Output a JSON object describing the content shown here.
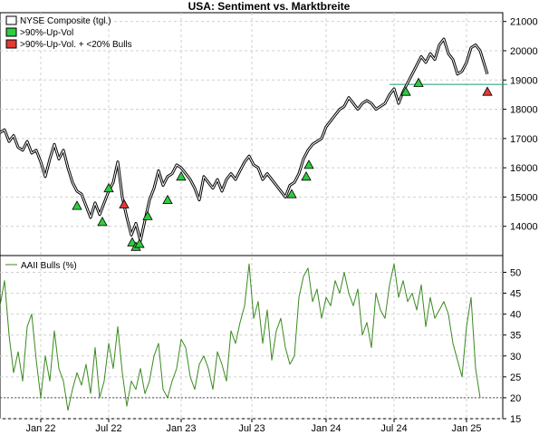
{
  "title": "USA: Sentiment vs. Marktbreite",
  "chart_data": [
    {
      "type": "line",
      "panel": "top",
      "ylim": [
        13000,
        21300
      ],
      "yticks": [
        14000,
        15000,
        16000,
        17000,
        18000,
        19000,
        20000,
        21000
      ],
      "ytick_labels": [
        "14000",
        "15000",
        "16000",
        "17000",
        "18000",
        "19000",
        "20000",
        "21000"
      ],
      "legend": {
        "position": "top-left",
        "entries": [
          {
            "label": "NYSE Composite (tgl.)",
            "color": "#ffffff"
          },
          {
            "label": ">90%-Up-Vol",
            "color": "#2ecc40"
          },
          {
            "label": ">90%-Up-Vol. + <20% Bulls",
            "color": "#e53935"
          }
        ]
      },
      "series": [
        {
          "name": "NYSE Composite (tgl.)",
          "points": [
            [
              0,
              17200
            ],
            [
              5,
              17300
            ],
            [
              10,
              16900
            ],
            [
              15,
              17100
            ],
            [
              20,
              16700
            ],
            [
              25,
              16600
            ],
            [
              30,
              16900
            ],
            [
              35,
              16500
            ],
            [
              40,
              16600
            ],
            [
              45,
              16200
            ],
            [
              50,
              15700
            ],
            [
              55,
              16300
            ],
            [
              60,
              16800
            ],
            [
              65,
              16300
            ],
            [
              70,
              16600
            ],
            [
              75,
              16000
            ],
            [
              80,
              15500
            ],
            [
              85,
              15200
            ],
            [
              90,
              15100
            ],
            [
              95,
              14700
            ],
            [
              100,
              14300
            ],
            [
              105,
              14800
            ],
            [
              110,
              14400
            ],
            [
              115,
              14800
            ],
            [
              120,
              15200
            ],
            [
              125,
              15500
            ],
            [
              130,
              16200
            ],
            [
              135,
              15000
            ],
            [
              140,
              14300
            ],
            [
              145,
              13700
            ],
            [
              150,
              14100
            ],
            [
              155,
              13500
            ],
            [
              160,
              14200
            ],
            [
              165,
              14900
            ],
            [
              170,
              15300
            ],
            [
              175,
              15900
            ],
            [
              180,
              15400
            ],
            [
              185,
              15700
            ],
            [
              190,
              15800
            ],
            [
              195,
              16100
            ],
            [
              200,
              16000
            ],
            [
              205,
              15800
            ],
            [
              210,
              15600
            ],
            [
              215,
              15300
            ],
            [
              220,
              14900
            ],
            [
              225,
              15700
            ],
            [
              230,
              15500
            ],
            [
              235,
              15300
            ],
            [
              240,
              15600
            ],
            [
              245,
              15200
            ],
            [
              250,
              15600
            ],
            [
              255,
              15800
            ],
            [
              260,
              15600
            ],
            [
              265,
              15900
            ],
            [
              270,
              16200
            ],
            [
              275,
              16400
            ],
            [
              280,
              16100
            ],
            [
              285,
              16000
            ],
            [
              290,
              15600
            ],
            [
              295,
              15800
            ],
            [
              300,
              15600
            ],
            [
              305,
              15400
            ],
            [
              310,
              15200
            ],
            [
              315,
              15000
            ],
            [
              320,
              15400
            ],
            [
              325,
              15500
            ],
            [
              330,
              15800
            ],
            [
              335,
              16300
            ],
            [
              340,
              16600
            ],
            [
              345,
              16800
            ],
            [
              350,
              16900
            ],
            [
              355,
              17000
            ],
            [
              360,
              17400
            ],
            [
              365,
              17600
            ],
            [
              370,
              17800
            ],
            [
              375,
              18000
            ],
            [
              380,
              18100
            ],
            [
              385,
              18400
            ],
            [
              390,
              18200
            ],
            [
              395,
              18000
            ],
            [
              400,
              18200
            ],
            [
              405,
              18300
            ],
            [
              410,
              18200
            ],
            [
              415,
              18000
            ],
            [
              420,
              18100
            ],
            [
              425,
              18200
            ],
            [
              430,
              18500
            ],
            [
              435,
              18700
            ],
            [
              440,
              18200
            ],
            [
              445,
              18600
            ],
            [
              450,
              18900
            ],
            [
              455,
              19200
            ],
            [
              460,
              19500
            ],
            [
              465,
              19800
            ],
            [
              470,
              19600
            ],
            [
              475,
              19900
            ],
            [
              480,
              19700
            ],
            [
              485,
              20200
            ],
            [
              490,
              20400
            ],
            [
              495,
              19900
            ],
            [
              500,
              19700
            ],
            [
              505,
              19200
            ],
            [
              510,
              19300
            ],
            [
              515,
              19600
            ],
            [
              520,
              20100
            ],
            [
              525,
              20200
            ],
            [
              530,
              20000
            ],
            [
              535,
              19500
            ],
            [
              538,
              19200
            ]
          ]
        }
      ],
      "markers": [
        {
          "label": ">90%-Up-Vol",
          "points": [
            [
              85,
              14700
            ],
            [
              113,
              14150
            ],
            [
              120,
              15300
            ],
            [
              146,
              13450
            ],
            [
              150,
              13300
            ],
            [
              154,
              13400
            ],
            [
              163,
              14350
            ],
            [
              185,
              14900
            ],
            [
              200,
              15700
            ],
            [
              322,
              15100
            ],
            [
              338,
              15700
            ],
            [
              341,
              16100
            ],
            [
              448,
              18600
            ],
            [
              462,
              18900
            ]
          ]
        },
        {
          "label": ">90%-Up-Vol. + <20% Bulls",
          "points": [
            [
              137,
              14750
            ],
            [
              538,
              18600
            ]
          ]
        }
      ],
      "reference_lines": [
        {
          "y": 18850,
          "x_from": 430,
          "x_to": 560
        }
      ]
    },
    {
      "type": "line",
      "panel": "bottom",
      "ylim": [
        15,
        54
      ],
      "yticks": [
        15,
        20,
        25,
        30,
        35,
        40,
        45,
        50
      ],
      "ytick_labels": [
        "15",
        "20",
        "25",
        "30",
        "35",
        "40",
        "45",
        "50"
      ],
      "legend": {
        "position": "top-left",
        "entries": [
          {
            "label": "AAII Bulls (%)",
            "color": "#3a8a1f"
          }
        ]
      },
      "x": [
        0,
        5,
        10,
        15,
        20,
        25,
        30,
        35,
        40,
        45,
        50,
        55,
        60,
        65,
        70,
        75,
        80,
        85,
        90,
        95,
        100,
        105,
        110,
        115,
        120,
        125,
        130,
        135,
        140,
        145,
        150,
        155,
        160,
        165,
        170,
        175,
        180,
        185,
        190,
        195,
        200,
        205,
        210,
        215,
        220,
        225,
        230,
        235,
        240,
        245,
        250,
        255,
        260,
        265,
        270,
        275,
        280,
        285,
        290,
        295,
        300,
        305,
        310,
        315,
        320,
        325,
        330,
        335,
        340,
        345,
        350,
        355,
        360,
        365,
        370,
        375,
        380,
        385,
        390,
        395,
        400,
        405,
        410,
        415,
        420,
        425,
        430,
        435,
        440,
        445,
        450,
        455,
        460,
        465,
        470,
        475,
        480,
        485,
        490,
        495,
        500,
        505,
        510,
        515,
        520,
        525,
        530
      ],
      "series": [
        {
          "name": "AAII Bulls (%)",
          "values": [
            42,
            48,
            35,
            26,
            31,
            24,
            37,
            40,
            29,
            20,
            30,
            24,
            36,
            27,
            24,
            17,
            22,
            26,
            23,
            28,
            21,
            32,
            20,
            24,
            33,
            27,
            37,
            26,
            18,
            24,
            22,
            27,
            21,
            24,
            30,
            33,
            22,
            20,
            24,
            27,
            34,
            32,
            25,
            22,
            28,
            30,
            27,
            22,
            31,
            28,
            24,
            36,
            33,
            38,
            42,
            52,
            39,
            43,
            33,
            41,
            29,
            36,
            39,
            32,
            28,
            30,
            44,
            49,
            51,
            43,
            46,
            39,
            44,
            42,
            48,
            45,
            50,
            45,
            42,
            46,
            35,
            38,
            32,
            45,
            41,
            39,
            47,
            52,
            44,
            48,
            43,
            45,
            41,
            47,
            37,
            44,
            39,
            41,
            43,
            40,
            33,
            29,
            25,
            37,
            44,
            27,
            20
          ]
        }
      ],
      "reference_lines": [
        {
          "y": 20
        }
      ]
    }
  ],
  "x_axis": {
    "tick_labels": [
      "Jan 22",
      "Jul 22",
      "Jan 23",
      "Jul 23",
      "Jan 24",
      "Jul 24",
      "Jan 25"
    ],
    "tick_positions": [
      45,
      120,
      200,
      278,
      360,
      435,
      515
    ]
  }
}
